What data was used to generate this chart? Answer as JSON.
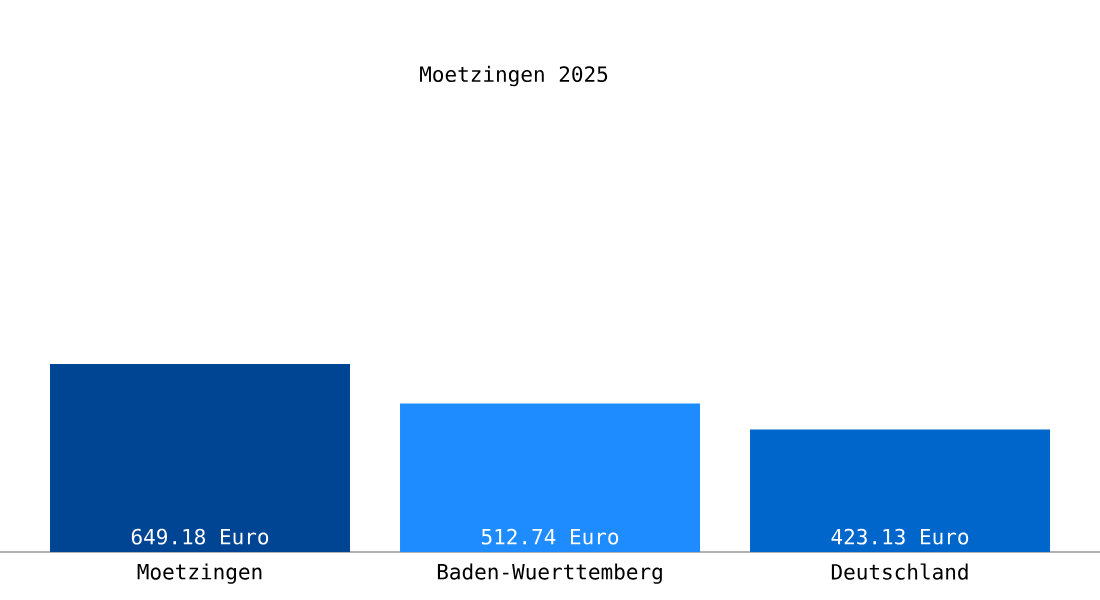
{
  "chart_data": {
    "type": "bar",
    "title": "Moetzingen 2025",
    "categories": [
      "Moetzingen",
      "Baden-Wuerttemberg",
      "Deutschland"
    ],
    "values": [
      649.18,
      512.74,
      423.13
    ],
    "colors": [
      "#004494",
      "#1e8cff",
      "#0066cc"
    ],
    "value_labels": [
      "649.18 Euro",
      "512.74 Euro",
      "423.13 Euro"
    ]
  }
}
